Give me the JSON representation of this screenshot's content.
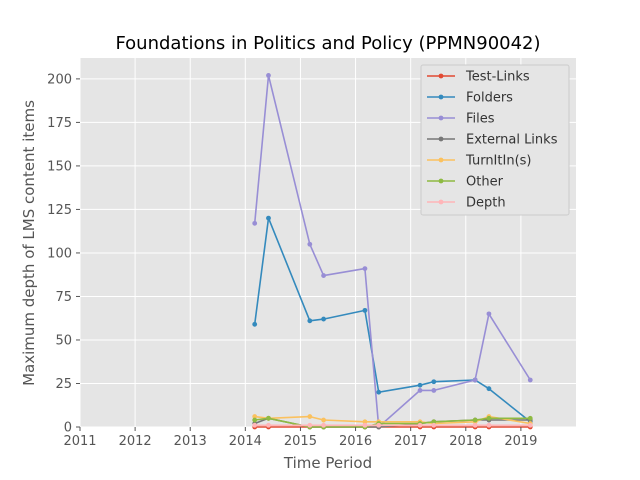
{
  "chart_data": {
    "type": "line",
    "title": "Foundations in Politics and Policy (PPMN90042)",
    "xlabel": "Time Period",
    "ylabel": "Maximum depth of LMS content items",
    "xlim": [
      2011,
      2020
    ],
    "ylim": [
      0,
      212
    ],
    "x_ticks": [
      "2011",
      "2012",
      "2013",
      "2014",
      "2015",
      "2016",
      "2017",
      "2018",
      "2019"
    ],
    "y_ticks": [
      "0",
      "25",
      "50",
      "75",
      "100",
      "125",
      "150",
      "175",
      "200"
    ],
    "grid": true,
    "legend_position": "top-right",
    "x": [
      2014.17,
      2014.42,
      2015.17,
      2015.42,
      2016.17,
      2016.42,
      2017.17,
      2017.42,
      2018.17,
      2018.42,
      2019.17
    ],
    "series": [
      {
        "name": "Test-Links",
        "color": "#e24a33",
        "values": [
          0,
          0,
          0,
          0,
          0,
          0,
          0,
          0,
          0,
          0,
          0
        ]
      },
      {
        "name": "Folders",
        "color": "#348abd",
        "values": [
          59,
          120,
          61,
          62,
          67,
          20,
          24,
          26,
          27,
          22,
          3
        ]
      },
      {
        "name": "Files",
        "color": "#988ed5",
        "values": [
          117,
          202,
          105,
          87,
          91,
          0,
          21,
          21,
          27,
          65,
          27
        ]
      },
      {
        "name": "External Links",
        "color": "#777777",
        "values": [
          2,
          5,
          0,
          0,
          0,
          0,
          2,
          3,
          4,
          4,
          4
        ]
      },
      {
        "name": "TurnItIn(s)",
        "color": "#fbc15e",
        "values": [
          6,
          5,
          6,
          4,
          3,
          3,
          3,
          2,
          3,
          6,
          2
        ]
      },
      {
        "name": "Other",
        "color": "#8eba42",
        "values": [
          4,
          5,
          0,
          0,
          0,
          2,
          2,
          3,
          4,
          5,
          5
        ]
      },
      {
        "name": "Depth",
        "color": "#ffb5b8",
        "values": [
          1,
          1,
          1,
          1,
          1,
          1,
          1,
          1,
          1,
          1,
          1
        ]
      }
    ]
  }
}
